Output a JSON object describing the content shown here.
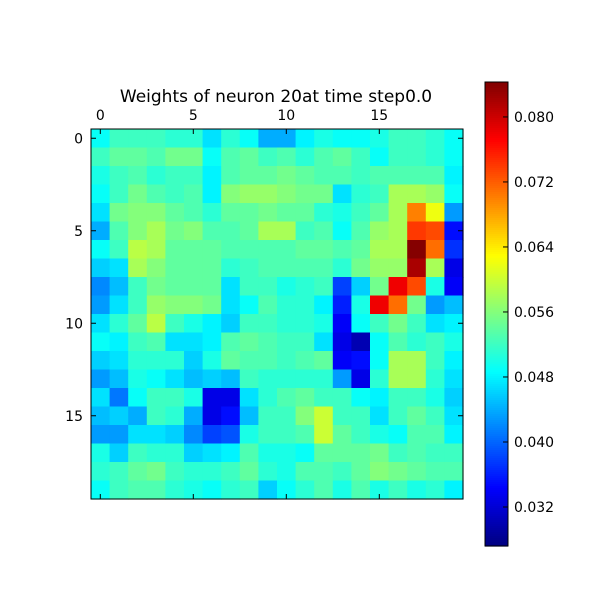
{
  "chart_data": {
    "type": "heatmap",
    "title": "Weights of neuron 20at time step0.0",
    "xlabel": "",
    "ylabel": "",
    "x_ticks": [
      0,
      5,
      10,
      15
    ],
    "y_ticks": [
      0,
      5,
      10,
      15
    ],
    "x_tick_position": "top",
    "rows": 20,
    "cols": 20,
    "colormap": "jet",
    "vmin": 0.0272,
    "vmax": 0.0843,
    "colorbar_ticks": [
      "0.032",
      "0.040",
      "0.048",
      "0.056",
      "0.064",
      "0.072",
      "0.080"
    ],
    "colorbar_tick_values": [
      0.032,
      0.04,
      0.048,
      0.056,
      0.064,
      0.072,
      0.08
    ],
    "grid": false,
    "legend": "none",
    "values": [
      [
        0.049,
        0.052,
        0.052,
        0.052,
        0.051,
        0.051,
        0.047,
        0.051,
        0.049,
        0.044,
        0.044,
        0.048,
        0.05,
        0.049,
        0.049,
        0.05,
        0.052,
        0.052,
        0.051,
        0.049
      ],
      [
        0.052,
        0.054,
        0.054,
        0.053,
        0.055,
        0.055,
        0.049,
        0.053,
        0.054,
        0.052,
        0.053,
        0.051,
        0.053,
        0.054,
        0.052,
        0.049,
        0.052,
        0.052,
        0.051,
        0.049
      ],
      [
        0.05,
        0.052,
        0.053,
        0.051,
        0.052,
        0.052,
        0.048,
        0.053,
        0.054,
        0.054,
        0.055,
        0.054,
        0.053,
        0.053,
        0.052,
        0.053,
        0.053,
        0.053,
        0.053,
        0.048
      ],
      [
        0.049,
        0.052,
        0.055,
        0.053,
        0.052,
        0.053,
        0.048,
        0.056,
        0.057,
        0.057,
        0.056,
        0.055,
        0.055,
        0.047,
        0.051,
        0.052,
        0.058,
        0.058,
        0.057,
        0.049
      ],
      [
        0.047,
        0.055,
        0.056,
        0.056,
        0.054,
        0.053,
        0.051,
        0.054,
        0.054,
        0.055,
        0.054,
        0.054,
        0.051,
        0.05,
        0.052,
        0.054,
        0.058,
        0.07,
        0.062,
        0.043
      ],
      [
        0.044,
        0.053,
        0.056,
        0.058,
        0.055,
        0.056,
        0.053,
        0.053,
        0.054,
        0.058,
        0.058,
        0.052,
        0.053,
        0.049,
        0.053,
        0.057,
        0.058,
        0.074,
        0.073,
        0.035
      ],
      [
        0.049,
        0.052,
        0.059,
        0.058,
        0.054,
        0.054,
        0.054,
        0.053,
        0.053,
        0.053,
        0.053,
        0.054,
        0.054,
        0.053,
        0.054,
        0.058,
        0.058,
        0.084,
        0.071,
        0.037
      ],
      [
        0.046,
        0.047,
        0.058,
        0.056,
        0.054,
        0.054,
        0.054,
        0.051,
        0.052,
        0.053,
        0.053,
        0.053,
        0.053,
        0.051,
        0.055,
        0.057,
        0.057,
        0.082,
        0.058,
        0.033
      ],
      [
        0.042,
        0.045,
        0.052,
        0.055,
        0.054,
        0.054,
        0.054,
        0.047,
        0.052,
        0.052,
        0.05,
        0.051,
        0.052,
        0.038,
        0.046,
        0.055,
        0.078,
        0.073,
        0.05,
        0.034
      ],
      [
        0.043,
        0.047,
        0.052,
        0.057,
        0.056,
        0.056,
        0.055,
        0.047,
        0.049,
        0.053,
        0.051,
        0.051,
        0.048,
        0.036,
        0.05,
        0.078,
        0.071,
        0.055,
        0.043,
        0.045
      ],
      [
        0.047,
        0.051,
        0.054,
        0.059,
        0.052,
        0.05,
        0.048,
        0.046,
        0.052,
        0.052,
        0.051,
        0.051,
        0.05,
        0.034,
        0.049,
        0.052,
        0.055,
        0.052,
        0.047,
        0.048
      ],
      [
        0.049,
        0.048,
        0.052,
        0.053,
        0.047,
        0.047,
        0.048,
        0.053,
        0.054,
        0.053,
        0.052,
        0.052,
        0.047,
        0.033,
        0.03,
        0.049,
        0.053,
        0.051,
        0.052,
        0.05
      ],
      [
        0.046,
        0.047,
        0.051,
        0.051,
        0.051,
        0.046,
        0.05,
        0.054,
        0.053,
        0.053,
        0.052,
        0.053,
        0.054,
        0.034,
        0.035,
        0.049,
        0.058,
        0.058,
        0.052,
        0.048
      ],
      [
        0.043,
        0.045,
        0.05,
        0.049,
        0.047,
        0.045,
        0.046,
        0.045,
        0.052,
        0.051,
        0.051,
        0.051,
        0.051,
        0.043,
        0.033,
        0.051,
        0.058,
        0.058,
        0.051,
        0.047
      ],
      [
        0.047,
        0.041,
        0.049,
        0.052,
        0.052,
        0.05,
        0.033,
        0.033,
        0.047,
        0.051,
        0.053,
        0.054,
        0.052,
        0.052,
        0.049,
        0.048,
        0.052,
        0.052,
        0.05,
        0.046
      ],
      [
        0.045,
        0.046,
        0.044,
        0.052,
        0.051,
        0.044,
        0.033,
        0.035,
        0.045,
        0.052,
        0.052,
        0.056,
        0.06,
        0.052,
        0.052,
        0.047,
        0.052,
        0.054,
        0.052,
        0.047
      ],
      [
        0.043,
        0.043,
        0.047,
        0.047,
        0.046,
        0.042,
        0.038,
        0.039,
        0.05,
        0.052,
        0.052,
        0.053,
        0.06,
        0.054,
        0.052,
        0.05,
        0.049,
        0.053,
        0.053,
        0.048
      ],
      [
        0.05,
        0.046,
        0.052,
        0.051,
        0.051,
        0.046,
        0.047,
        0.048,
        0.053,
        0.05,
        0.05,
        0.049,
        0.054,
        0.054,
        0.054,
        0.055,
        0.052,
        0.053,
        0.052,
        0.052
      ],
      [
        0.051,
        0.052,
        0.054,
        0.055,
        0.052,
        0.051,
        0.051,
        0.052,
        0.054,
        0.051,
        0.05,
        0.053,
        0.053,
        0.052,
        0.054,
        0.056,
        0.055,
        0.054,
        0.053,
        0.053
      ],
      [
        0.049,
        0.052,
        0.053,
        0.053,
        0.051,
        0.05,
        0.049,
        0.051,
        0.052,
        0.046,
        0.049,
        0.051,
        0.053,
        0.05,
        0.053,
        0.05,
        0.052,
        0.05,
        0.051,
        0.048
      ]
    ]
  }
}
